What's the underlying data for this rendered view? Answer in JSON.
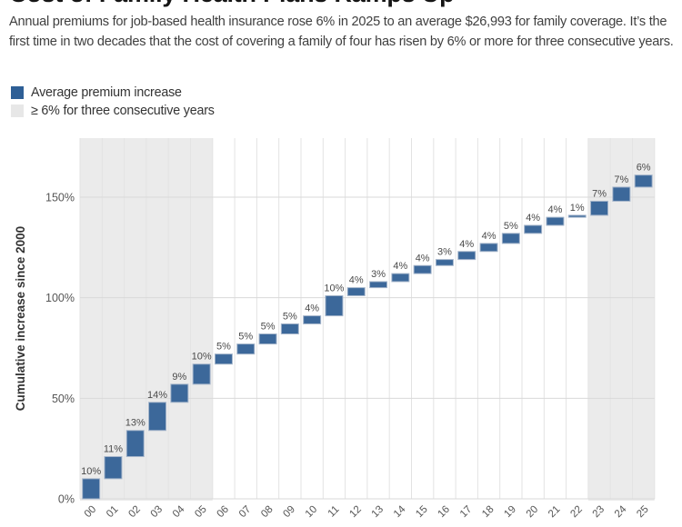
{
  "header": {
    "title": "Cost of Family Health Plans Ramps Up",
    "subtitle": "Annual premiums for job-based health insurance rose 6% in 2025 to an average $26,993 for family coverage. It’s the first time in two decades that the cost of covering a family of four has risen by 6% or more for three consecutive years."
  },
  "legend": {
    "items": [
      {
        "label": "Average premium increase",
        "swatch_color": "#2e5f96"
      },
      {
        "label": "≥ 6% for three consecutive years",
        "swatch_color": "#e7e7e7"
      }
    ]
  },
  "chart_data": {
    "type": "bar",
    "subtype": "waterfall",
    "title": "Cost of Family Health Plans Ramps Up",
    "xlabel": "",
    "ylabel": "Cumulative increase since 2000",
    "categories": [
      "00",
      "01",
      "02",
      "03",
      "04",
      "05",
      "06",
      "07",
      "08",
      "09",
      "10",
      "11",
      "12",
      "13",
      "14",
      "15",
      "16",
      "17",
      "18",
      "19",
      "20",
      "21",
      "22",
      "23",
      "24",
      "25"
    ],
    "values": [
      10,
      11,
      13,
      14,
      9,
      10,
      5,
      5,
      5,
      5,
      4,
      10,
      4,
      3,
      4,
      4,
      3,
      4,
      4,
      5,
      4,
      4,
      1,
      7,
      7,
      6
    ],
    "bar_labels": [
      "10%",
      "11%",
      "13%",
      "14%",
      "9%",
      "10%",
      "5%",
      "5%",
      "5%",
      "5%",
      "4%",
      "10%",
      "4%",
      "3%",
      "4%",
      "4%",
      "3%",
      "4%",
      "4%",
      "5%",
      "4%",
      "4%",
      "1%",
      "7%",
      "7%",
      "6%"
    ],
    "cumulative_totals": [
      10,
      21,
      34,
      48,
      57,
      67,
      72,
      77,
      82,
      87,
      91,
      101,
      105,
      108,
      112,
      116,
      119,
      123,
      127,
      132,
      136,
      140,
      141,
      148,
      155,
      161
    ],
    "ylim": [
      0,
      180
    ],
    "yticks": [
      {
        "value": 0,
        "label": "0%"
      },
      {
        "value": 50,
        "label": "50%"
      },
      {
        "value": 100,
        "label": "100%"
      },
      {
        "value": 150,
        "label": "150%"
      }
    ],
    "grid": true,
    "legend_position": "top-left",
    "highlight_bands": [
      {
        "start_category": "00",
        "end_category": "05",
        "meaning": "≥ 6% for three consecutive years"
      },
      {
        "start_category": "23",
        "end_category": "25",
        "meaning": "≥ 6% for three consecutive years"
      }
    ],
    "colors": {
      "bar": "#3c689a",
      "bar_border": "#a6b6cb",
      "band": "#ebebeb",
      "grid_h": "#d9d9d9",
      "grid_v": "#e3e3e3",
      "tick_text": "#555555",
      "bar_label_text": "#4a4a4a",
      "axis_title_text": "#333333"
    }
  }
}
